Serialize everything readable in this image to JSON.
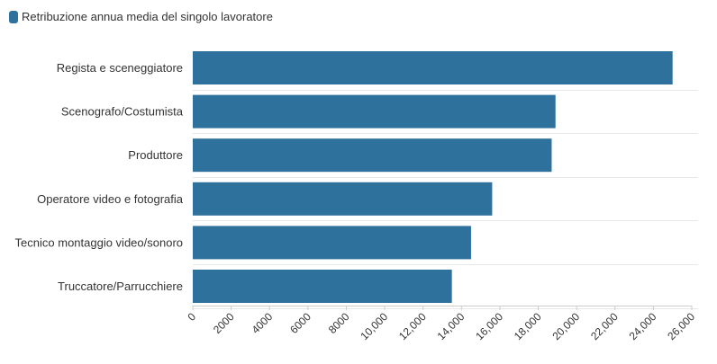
{
  "legend": {
    "label": "Retribuzione annua media del singolo lavoratore",
    "color": "#2f719d"
  },
  "chart_data": {
    "type": "bar",
    "orientation": "horizontal",
    "title": "",
    "xlabel": "",
    "ylabel": "",
    "categories": [
      "Regista e sceneggiatore",
      "Scenografo/Costumista",
      "Produttore",
      "Operatore video e fotografia",
      "Tecnico montaggio video/sonoro",
      "Truccatore/Parrucchiere"
    ],
    "series": [
      {
        "name": "Retribuzione annua media del singolo lavoratore",
        "values": [
          25000,
          18900,
          18700,
          15600,
          14500,
          13500
        ],
        "color": "#2f719d"
      }
    ],
    "xlim": [
      0,
      26000
    ],
    "xticks": [
      0,
      2000,
      4000,
      6000,
      8000,
      10000,
      12000,
      14000,
      16000,
      18000,
      20000,
      22000,
      24000,
      26000
    ],
    "xtick_labels": [
      "0",
      "2000",
      "4000",
      "6000",
      "8000",
      "10,000",
      "12,000",
      "14,000",
      "16,000",
      "18,000",
      "20,000",
      "22,000",
      "24,000",
      "26,000"
    ],
    "grid": true,
    "legend_position": "top-left"
  }
}
